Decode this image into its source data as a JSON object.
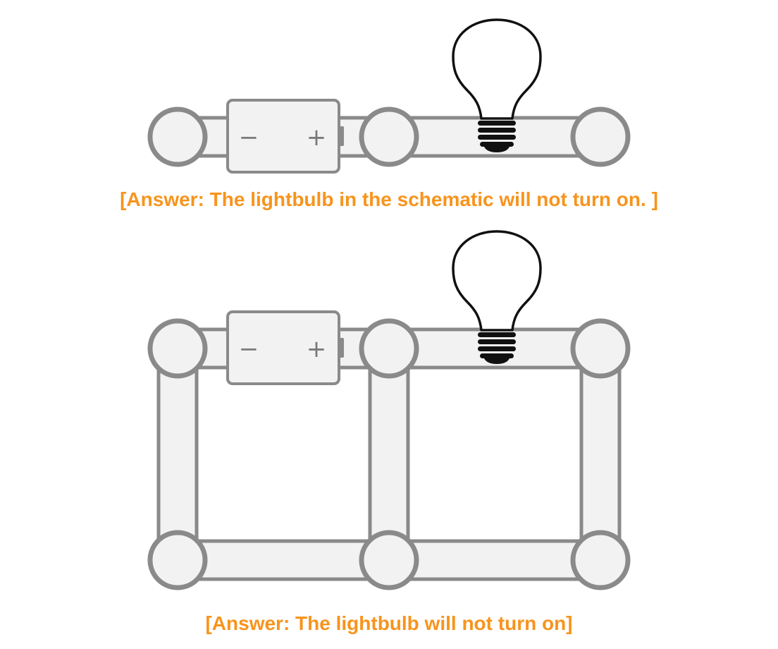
{
  "circuit_top": {
    "battery": {
      "negative_symbol": "−",
      "positive_symbol": "+"
    },
    "answer": "[Answer: The lightbulb in the schematic will not turn on. ]"
  },
  "circuit_bottom": {
    "battery": {
      "negative_symbol": "−",
      "positive_symbol": "+"
    },
    "answer": "[Answer: The lightbulb will not turn on]"
  },
  "colors": {
    "answer_text": "#f7941d",
    "wire_fill": "#f2f2f2",
    "wire_stroke": "#8a8a8a",
    "bulb_stroke": "#111111"
  }
}
